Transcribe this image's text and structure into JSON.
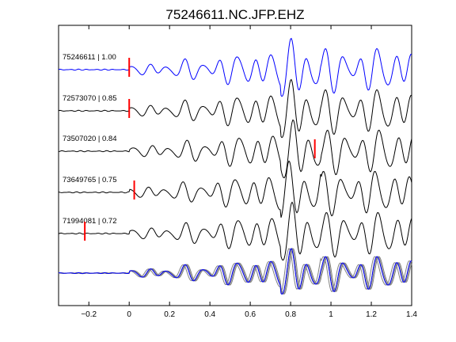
{
  "chart_data": {
    "type": "line",
    "title": "75246611.NC.JFP.EHZ",
    "xlabel": "",
    "ylabel": "",
    "xlim": [
      -0.35,
      1.4
    ],
    "xticks": [
      -0.2,
      0,
      0.2,
      0.4,
      0.6,
      0.8,
      1,
      1.2,
      1.4
    ],
    "xtick_labels": [
      "−0.2",
      "0",
      "0.2",
      "0.4",
      "0.6",
      "0.8",
      "1",
      "1.2",
      "1.4"
    ],
    "grid": false,
    "legend": "none",
    "traces": [
      {
        "label": "75246611 | 1.00",
        "event_id": "75246611",
        "correlation": 1.0,
        "pick_time": 0.0,
        "color": "#0000ff",
        "shift": 0.0,
        "amp": 1.0
      },
      {
        "label": "72573070 | 0.85",
        "event_id": "72573070",
        "correlation": 0.85,
        "pick_time": 0.0,
        "color": "#000000",
        "shift": 0.0,
        "amp": 1.0
      },
      {
        "label": "73507020 | 0.84",
        "event_id": "73507020",
        "correlation": 0.84,
        "pick_time": 0.92,
        "color": "#000000",
        "shift": 0.01,
        "amp": 1.0
      },
      {
        "label": "73649765 | 0.75",
        "event_id": "73649765",
        "correlation": 0.75,
        "pick_time": 0.025,
        "color": "#000000",
        "shift": -0.01,
        "amp": 1.0
      },
      {
        "label": "71994081 | 0.72",
        "event_id": "71994081",
        "correlation": 0.72,
        "pick_time": -0.22,
        "color": "#000000",
        "shift": 0.005,
        "amp": 1.0
      }
    ],
    "overlay": {
      "master_color": "#0000ff",
      "other_color": "#808080"
    },
    "pick_color": "#ff0000",
    "colors": {
      "master": "#0000ff",
      "trace": "#000000",
      "overlay": "#808080",
      "pick": "#ff0000",
      "axes": "#000000"
    }
  }
}
